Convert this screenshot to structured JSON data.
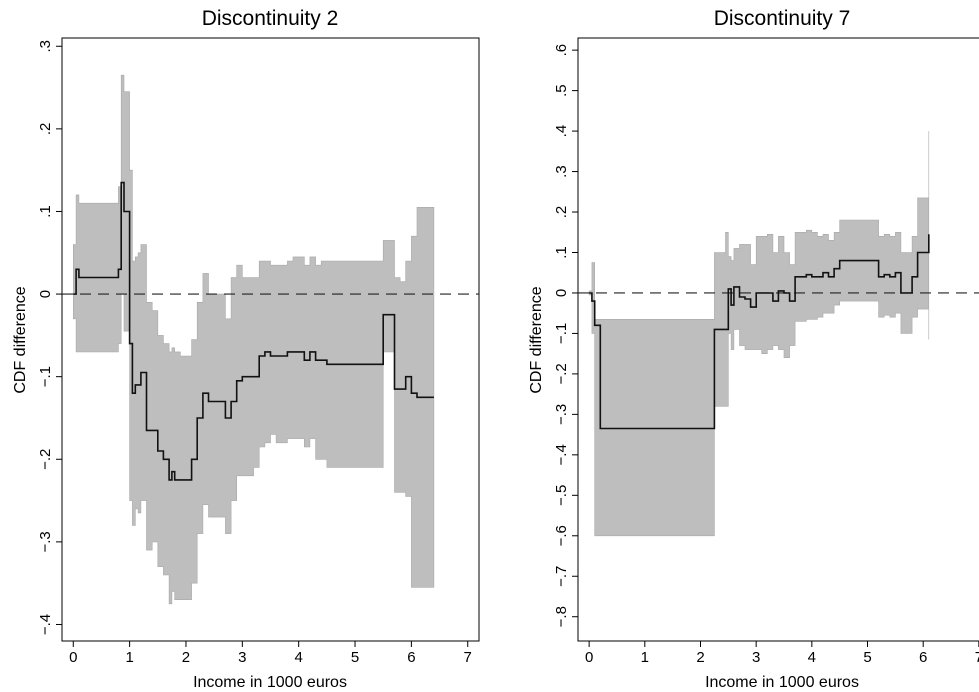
{
  "chart_data": [
    {
      "type": "line",
      "title": "Discontinuity 2",
      "xlabel": "Income in 1000 euros",
      "ylabel": "CDF difference",
      "xlim": [
        -0.2,
        7.2
      ],
      "ylim": [
        -0.42,
        0.31
      ],
      "xticks": [
        0,
        1,
        2,
        3,
        4,
        5,
        6,
        7
      ],
      "xtick_labels": [
        "0",
        "1",
        "2",
        "3",
        "4",
        "5",
        "6",
        "7"
      ],
      "yticks": [
        -0.4,
        -0.3,
        -0.2,
        -0.1,
        0,
        0.1,
        0.2,
        0.3
      ],
      "ytick_labels": [
        "-.4",
        "-.3",
        "-.2",
        "-.1",
        "0",
        ".1",
        ".2",
        ".3"
      ],
      "reference_line": 0,
      "series": [
        {
          "role": "estimate",
          "x": [
            0,
            0.05,
            0.1,
            0.2,
            0.75,
            0.8,
            0.85,
            0.9,
            0.95,
            1.0,
            1.05,
            1.1,
            1.15,
            1.2,
            1.3,
            1.4,
            1.5,
            1.6,
            1.7,
            1.75,
            1.8,
            1.9,
            2.0,
            2.1,
            2.2,
            2.3,
            2.4,
            2.5,
            2.6,
            2.7,
            2.8,
            2.9,
            3.0,
            3.1,
            3.2,
            3.3,
            3.4,
            3.5,
            3.6,
            3.7,
            3.8,
            3.9,
            4.0,
            4.1,
            4.2,
            4.3,
            4.4,
            4.5,
            4.6,
            4.8,
            5.0,
            5.2,
            5.4,
            5.5,
            5.6,
            5.7,
            5.8,
            5.9,
            6.0,
            6.1,
            6.2,
            6.4
          ],
          "y": [
            0,
            0.03,
            0.02,
            0.02,
            0.02,
            0.03,
            0.135,
            0.1,
            0.1,
            -0.06,
            -0.12,
            -0.11,
            -0.11,
            -0.095,
            -0.165,
            -0.165,
            -0.19,
            -0.2,
            -0.225,
            -0.215,
            -0.225,
            -0.225,
            -0.225,
            -0.2,
            -0.15,
            -0.12,
            -0.13,
            -0.13,
            -0.13,
            -0.15,
            -0.13,
            -0.105,
            -0.1,
            -0.1,
            -0.1,
            -0.075,
            -0.07,
            -0.075,
            -0.075,
            -0.075,
            -0.07,
            -0.07,
            -0.07,
            -0.08,
            -0.07,
            -0.08,
            -0.08,
            -0.085,
            -0.085,
            -0.085,
            -0.085,
            -0.085,
            -0.085,
            -0.025,
            -0.025,
            -0.115,
            -0.115,
            -0.1,
            -0.12,
            -0.125,
            -0.125,
            -0.125
          ]
        },
        {
          "role": "ci_upper",
          "x": [
            0,
            0.05,
            0.1,
            0.2,
            0.75,
            0.8,
            0.85,
            0.9,
            0.95,
            1.0,
            1.05,
            1.1,
            1.15,
            1.2,
            1.3,
            1.4,
            1.5,
            1.6,
            1.7,
            1.75,
            1.8,
            1.9,
            2.0,
            2.1,
            2.2,
            2.3,
            2.4,
            2.5,
            2.6,
            2.7,
            2.8,
            2.9,
            3.0,
            3.1,
            3.2,
            3.3,
            3.4,
            3.5,
            3.6,
            3.7,
            3.8,
            3.9,
            4.0,
            4.1,
            4.2,
            4.3,
            4.4,
            4.5,
            4.6,
            4.8,
            5.0,
            5.2,
            5.4,
            5.5,
            5.6,
            5.7,
            5.8,
            5.9,
            6.0,
            6.1,
            6.2,
            6.4
          ],
          "y": [
            0.06,
            0.12,
            0.11,
            0.11,
            0.11,
            0.13,
            0.265,
            0.245,
            0.245,
            0.15,
            0.04,
            0.045,
            0.05,
            0.06,
            -0.01,
            -0.02,
            -0.05,
            -0.06,
            -0.07,
            -0.065,
            -0.07,
            -0.075,
            -0.075,
            -0.055,
            -0.01,
            0.025,
            0.0,
            0.0,
            0.0,
            -0.03,
            0.02,
            0.035,
            0.02,
            0.02,
            0.02,
            0.04,
            0.04,
            0.035,
            0.035,
            0.035,
            0.04,
            0.045,
            0.045,
            0.035,
            0.045,
            0.035,
            0.04,
            0.04,
            0.04,
            0.04,
            0.04,
            0.04,
            0.04,
            0.065,
            0.065,
            0.02,
            0.015,
            0.04,
            0.07,
            0.105,
            0.105,
            0.105
          ]
        },
        {
          "role": "ci_lower",
          "x": [
            0,
            0.05,
            0.1,
            0.2,
            0.75,
            0.8,
            0.85,
            0.9,
            0.95,
            1.0,
            1.05,
            1.1,
            1.15,
            1.2,
            1.3,
            1.4,
            1.5,
            1.6,
            1.7,
            1.75,
            1.8,
            1.9,
            2.0,
            2.1,
            2.2,
            2.3,
            2.4,
            2.5,
            2.6,
            2.7,
            2.8,
            2.9,
            3.0,
            3.1,
            3.2,
            3.3,
            3.4,
            3.5,
            3.6,
            3.7,
            3.8,
            3.9,
            4.0,
            4.1,
            4.2,
            4.3,
            4.4,
            4.5,
            4.6,
            4.8,
            5.0,
            5.2,
            5.4,
            5.5,
            5.6,
            5.7,
            5.8,
            5.9,
            6.0,
            6.1,
            6.2,
            6.4
          ],
          "y": [
            -0.03,
            -0.07,
            -0.07,
            -0.07,
            -0.07,
            -0.06,
            0.0,
            -0.045,
            -0.045,
            -0.25,
            -0.28,
            -0.26,
            -0.265,
            -0.25,
            -0.31,
            -0.3,
            -0.33,
            -0.34,
            -0.375,
            -0.36,
            -0.37,
            -0.37,
            -0.37,
            -0.35,
            -0.29,
            -0.255,
            -0.27,
            -0.27,
            -0.27,
            -0.29,
            -0.25,
            -0.22,
            -0.22,
            -0.22,
            -0.21,
            -0.185,
            -0.18,
            -0.17,
            -0.18,
            -0.18,
            -0.175,
            -0.175,
            -0.175,
            -0.185,
            -0.175,
            -0.2,
            -0.2,
            -0.21,
            -0.21,
            -0.21,
            -0.21,
            -0.21,
            -0.21,
            -0.07,
            -0.07,
            -0.24,
            -0.24,
            -0.245,
            -0.355,
            -0.355,
            -0.355,
            -0.355
          ]
        }
      ]
    },
    {
      "type": "line",
      "title": "Discontinuity 7",
      "xlabel": "Income in 1000 euros",
      "ylabel": "CDF difference",
      "xlim": [
        -0.2,
        7.2
      ],
      "ylim": [
        -0.86,
        0.63
      ],
      "xticks": [
        0,
        1,
        2,
        3,
        4,
        5,
        6,
        7
      ],
      "xtick_labels": [
        "0",
        "1",
        "2",
        "3",
        "4",
        "5",
        "6",
        "7"
      ],
      "yticks": [
        -0.8,
        -0.7,
        -0.6,
        -0.5,
        -0.4,
        -0.3,
        -0.2,
        -0.1,
        0,
        0.1,
        0.2,
        0.3,
        0.4,
        0.5,
        0.6
      ],
      "ytick_labels": [
        "-.8",
        "-.7",
        "-.6",
        "-.5",
        "-.4",
        "-.3",
        "-.2",
        "-.1",
        "0",
        ".1",
        ".2",
        ".3",
        ".4",
        ".5",
        ".6"
      ],
      "reference_line": 0,
      "series": [
        {
          "role": "estimate",
          "x": [
            0,
            0.05,
            0.1,
            0.2,
            2.15,
            2.25,
            2.35,
            2.45,
            2.5,
            2.55,
            2.6,
            2.7,
            2.8,
            2.9,
            3.0,
            3.1,
            3.2,
            3.3,
            3.4,
            3.5,
            3.6,
            3.7,
            3.8,
            3.9,
            4.0,
            4.1,
            4.2,
            4.3,
            4.4,
            4.5,
            4.6,
            4.8,
            5.0,
            5.2,
            5.3,
            5.4,
            5.5,
            5.6,
            5.7,
            5.8,
            5.9,
            6.1
          ],
          "y": [
            0,
            -0.02,
            -0.08,
            -0.335,
            -0.335,
            -0.09,
            -0.09,
            -0.09,
            0.01,
            -0.03,
            0.015,
            -0.01,
            -0.015,
            -0.035,
            0.0,
            0.0,
            0.0,
            -0.02,
            0.005,
            0.0,
            -0.02,
            0.04,
            0.04,
            0.045,
            0.04,
            0.04,
            0.05,
            0.04,
            0.06,
            0.08,
            0.08,
            0.08,
            0.08,
            0.04,
            0.045,
            0.04,
            0.05,
            0.0,
            0.0,
            0.04,
            0.1,
            0.145
          ]
        },
        {
          "role": "ci_upper",
          "x": [
            0,
            0.05,
            0.1,
            0.2,
            2.15,
            2.25,
            2.35,
            2.45,
            2.5,
            2.55,
            2.6,
            2.7,
            2.8,
            2.9,
            3.0,
            3.1,
            3.2,
            3.3,
            3.4,
            3.5,
            3.6,
            3.7,
            3.8,
            3.9,
            4.0,
            4.1,
            4.2,
            4.3,
            4.4,
            4.5,
            4.6,
            4.8,
            5.0,
            5.2,
            5.3,
            5.4,
            5.5,
            5.6,
            5.7,
            5.8,
            5.9,
            6.1
          ],
          "y": [
            0.005,
            0.075,
            -0.065,
            -0.065,
            -0.065,
            0.1,
            0.1,
            0.15,
            0.09,
            0.08,
            0.11,
            0.12,
            0.12,
            0.07,
            0.14,
            0.14,
            0.145,
            0.1,
            0.14,
            0.1,
            0.07,
            0.15,
            0.15,
            0.155,
            0.15,
            0.14,
            0.145,
            0.13,
            0.15,
            0.18,
            0.18,
            0.18,
            0.18,
            0.14,
            0.145,
            0.14,
            0.15,
            0.1,
            0.1,
            0.14,
            0.235,
            0.4
          ]
        },
        {
          "role": "ci_lower",
          "x": [
            0,
            0.05,
            0.1,
            0.2,
            2.15,
            2.25,
            2.35,
            2.45,
            2.5,
            2.55,
            2.6,
            2.7,
            2.8,
            2.9,
            3.0,
            3.1,
            3.2,
            3.3,
            3.4,
            3.5,
            3.6,
            3.7,
            3.8,
            3.9,
            4.0,
            4.1,
            4.2,
            4.3,
            4.4,
            4.5,
            4.6,
            4.8,
            5.0,
            5.2,
            5.3,
            5.4,
            5.5,
            5.6,
            5.7,
            5.8,
            5.9,
            6.1
          ],
          "y": [
            -0.005,
            -0.1,
            -0.6,
            -0.6,
            -0.6,
            -0.28,
            -0.28,
            -0.28,
            -0.1,
            -0.14,
            -0.09,
            -0.13,
            -0.14,
            -0.14,
            -0.14,
            -0.15,
            -0.14,
            -0.13,
            -0.14,
            -0.16,
            -0.13,
            -0.07,
            -0.07,
            -0.065,
            -0.065,
            -0.06,
            -0.05,
            -0.05,
            -0.03,
            -0.02,
            -0.02,
            -0.02,
            -0.02,
            -0.06,
            -0.055,
            -0.06,
            -0.05,
            -0.1,
            -0.1,
            -0.06,
            -0.04,
            -0.115
          ]
        }
      ]
    }
  ]
}
